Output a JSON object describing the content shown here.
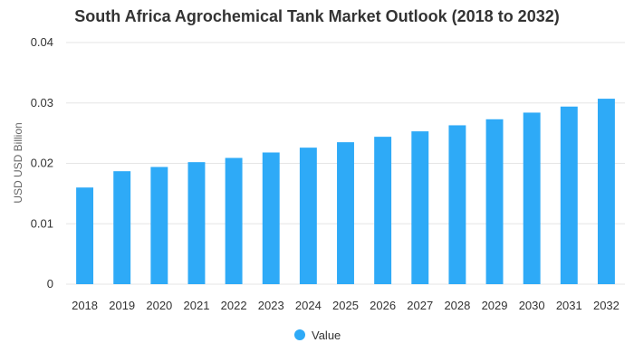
{
  "chart_data": {
    "type": "bar",
    "title": "South Africa Agrochemical Tank Market Outlook (2018 to 2032)",
    "ylabel": "USD USD Billion",
    "xlabel": "",
    "categories": [
      "2018",
      "2019",
      "2020",
      "2021",
      "2022",
      "2023",
      "2024",
      "2025",
      "2026",
      "2027",
      "2028",
      "2029",
      "2030",
      "2031",
      "2032"
    ],
    "series": [
      {
        "name": "Value",
        "values": [
          0.016,
          0.0187,
          0.0194,
          0.0202,
          0.0209,
          0.0218,
          0.0226,
          0.0235,
          0.0244,
          0.0253,
          0.0263,
          0.0273,
          0.0284,
          0.0294,
          0.0307
        ],
        "color": "#2eaaf7"
      }
    ],
    "ylim": [
      0,
      0.04
    ],
    "yticks": [
      "0",
      "0.01",
      "0.02",
      "0.03",
      "0.04"
    ],
    "ytick_values": [
      0,
      0.01,
      0.02,
      0.03,
      0.04
    ],
    "grid": true,
    "legend_position": "bottom-center",
    "gridline_color": "#e6e6e6"
  }
}
